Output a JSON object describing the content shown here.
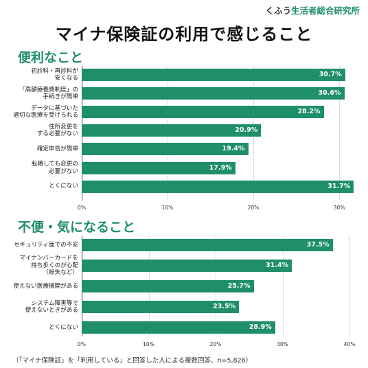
{
  "brand": {
    "name": "くふう",
    "suffix": "生活者総合研究所"
  },
  "title": "マイナ保険証の利用で感じること",
  "footnote": "（「マイナ保険証」を「利用している」と回答した人による複数回答、n=5,826）",
  "colors": {
    "bar": "#1e8f67",
    "heading": "#1e8f67"
  },
  "chart_data": [
    {
      "type": "bar",
      "orientation": "horizontal",
      "title": "便利なこと",
      "categories": [
        "初診料・再診料が\n安くなる",
        "「高額療養費制度」の\n手続きが簡単",
        "データに基づいた\n適切な医療を受けられる",
        "住所変更を\nする必要がない",
        "確定申告が簡単",
        "転職しても変更の\n必要がない",
        "とくにない"
      ],
      "values": [
        30.7,
        30.6,
        28.2,
        20.9,
        19.4,
        17.9,
        31.7
      ],
      "value_labels": [
        "30.7%",
        "30.6%",
        "28.2%",
        "20.9%",
        "19.4%",
        "17.9%",
        "31.7%"
      ],
      "xlim": [
        0,
        30
      ],
      "ticks": [
        "0%",
        "10%",
        "20%",
        "30%"
      ],
      "grid": true
    },
    {
      "type": "bar",
      "orientation": "horizontal",
      "title": "不便・気になること",
      "categories": [
        "セキュリティ面での不安",
        "マイナンバーカードを\n持ち歩くのが心配\n（紛失など）",
        "使えない医療機関がある",
        "システム障害等で\n使えないときがある",
        "とくにない"
      ],
      "values": [
        37.5,
        31.4,
        25.7,
        23.5,
        28.9
      ],
      "value_labels": [
        "37.5%",
        "31.4%",
        "25.7%",
        "23.5%",
        "28.9%"
      ],
      "xlim": [
        0,
        40
      ],
      "ticks": [
        "0%",
        "10%",
        "20%",
        "30%",
        "40%"
      ],
      "grid": true
    }
  ]
}
